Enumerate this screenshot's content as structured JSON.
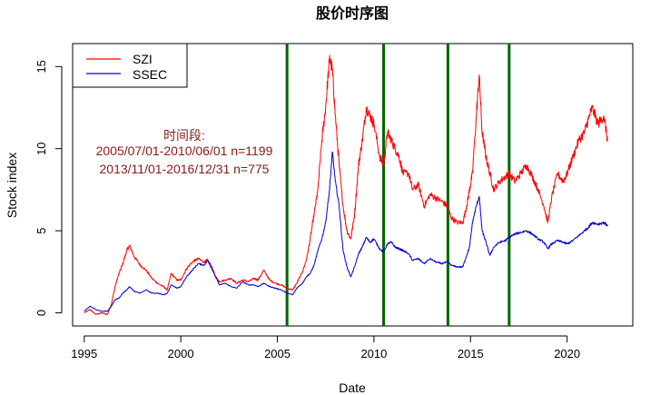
{
  "chart_data": {
    "type": "line",
    "title": "股价时序图",
    "xlabel": "Date",
    "ylabel": "Stock index",
    "xlim": [
      1994.4,
      2023.4
    ],
    "ylim": [
      -0.8,
      16.4
    ],
    "x_ticks": [
      1995,
      2000,
      2005,
      2010,
      2015,
      2020
    ],
    "x_tick_labels": [
      "1995",
      "2000",
      "2005",
      "2010",
      "2015",
      "2020"
    ],
    "y_ticks": [
      0,
      5,
      10,
      15
    ],
    "y_tick_labels": [
      "0",
      "5",
      "10",
      "15"
    ],
    "grid": false,
    "legend": {
      "position": "top-left",
      "entries": [
        "SZI",
        "SSEC"
      ]
    },
    "series": [
      {
        "name": "SZI",
        "color": "#ff0000",
        "x": [
          1995.0,
          1995.3,
          1995.6,
          1995.9,
          1996.2,
          1996.4,
          1996.6,
          1996.8,
          1997.0,
          1997.2,
          1997.35,
          1997.6,
          1997.9,
          1998.2,
          1998.5,
          1998.8,
          1999.1,
          1999.3,
          1999.5,
          1999.8,
          2000.0,
          2000.3,
          2000.6,
          2000.9,
          2001.2,
          2001.4,
          2001.6,
          2001.8,
          2002.0,
          2002.3,
          2002.6,
          2002.9,
          2003.2,
          2003.5,
          2003.8,
          2004.0,
          2004.3,
          2004.6,
          2004.9,
          2005.2,
          2005.5,
          2005.8,
          2006.0,
          2006.3,
          2006.5,
          2006.7,
          2006.9,
          2007.1,
          2007.3,
          2007.5,
          2007.7,
          2007.85,
          2008.0,
          2008.2,
          2008.4,
          2008.6,
          2008.8,
          2009.0,
          2009.2,
          2009.4,
          2009.6,
          2009.8,
          2010.0,
          2010.3,
          2010.5,
          2010.7,
          2010.9,
          2011.1,
          2011.3,
          2011.5,
          2011.8,
          2012.0,
          2012.3,
          2012.6,
          2012.9,
          2013.2,
          2013.5,
          2013.8,
          2014.0,
          2014.3,
          2014.6,
          2014.8,
          2014.95,
          2015.1,
          2015.3,
          2015.45,
          2015.6,
          2015.8,
          2016.0,
          2016.2,
          2016.5,
          2016.8,
          2017.0,
          2017.3,
          2017.6,
          2017.9,
          2018.2,
          2018.5,
          2018.8,
          2019.0,
          2019.2,
          2019.5,
          2019.8,
          2020.0,
          2020.3,
          2020.6,
          2020.9,
          2021.1,
          2021.3,
          2021.6,
          2021.9,
          2022.1
        ],
        "values": [
          0.0,
          0.2,
          -0.1,
          0.0,
          -0.1,
          0.5,
          1.6,
          2.4,
          3.0,
          3.8,
          4.1,
          3.4,
          2.9,
          2.6,
          2.1,
          1.8,
          1.6,
          1.4,
          2.4,
          2.0,
          2.0,
          2.7,
          3.1,
          3.3,
          3.1,
          3.2,
          2.8,
          2.2,
          1.9,
          2.0,
          2.1,
          1.8,
          2.0,
          1.9,
          2.1,
          2.0,
          2.6,
          2.0,
          1.8,
          1.7,
          1.5,
          1.4,
          1.8,
          2.5,
          3.2,
          4.5,
          6.0,
          7.5,
          10.5,
          12.5,
          15.5,
          14.8,
          12.0,
          9.0,
          6.5,
          5.0,
          4.5,
          6.0,
          9.0,
          10.5,
          12.5,
          12.0,
          11.5,
          9.5,
          9.0,
          11.0,
          10.5,
          10.0,
          9.5,
          8.5,
          8.5,
          7.5,
          7.8,
          6.5,
          7.2,
          7.0,
          6.8,
          6.5,
          5.8,
          5.5,
          5.5,
          6.5,
          7.5,
          8.5,
          12.0,
          14.5,
          11.0,
          9.5,
          8.5,
          7.5,
          8.0,
          8.3,
          8.5,
          8.0,
          8.5,
          9.0,
          8.3,
          7.5,
          6.5,
          5.5,
          7.0,
          8.5,
          8.0,
          8.5,
          9.5,
          10.5,
          11.0,
          11.8,
          12.5,
          11.5,
          12.0,
          10.5
        ]
      },
      {
        "name": "SSEC",
        "color": "#0000cc",
        "x": [
          1995.0,
          1995.3,
          1995.6,
          1995.9,
          1996.2,
          1996.4,
          1996.6,
          1996.8,
          1997.0,
          1997.2,
          1997.35,
          1997.6,
          1997.9,
          1998.2,
          1998.5,
          1998.8,
          1999.1,
          1999.3,
          1999.5,
          1999.8,
          2000.0,
          2000.3,
          2000.6,
          2000.9,
          2001.2,
          2001.4,
          2001.6,
          2001.8,
          2002.0,
          2002.3,
          2002.6,
          2002.9,
          2003.2,
          2003.5,
          2003.8,
          2004.0,
          2004.3,
          2004.6,
          2004.9,
          2005.2,
          2005.5,
          2005.8,
          2006.0,
          2006.3,
          2006.5,
          2006.7,
          2006.9,
          2007.1,
          2007.3,
          2007.5,
          2007.7,
          2007.85,
          2008.0,
          2008.2,
          2008.4,
          2008.6,
          2008.8,
          2009.0,
          2009.2,
          2009.4,
          2009.6,
          2009.8,
          2010.0,
          2010.3,
          2010.5,
          2010.7,
          2010.9,
          2011.1,
          2011.3,
          2011.5,
          2011.8,
          2012.0,
          2012.3,
          2012.6,
          2012.9,
          2013.2,
          2013.5,
          2013.8,
          2014.0,
          2014.3,
          2014.6,
          2014.8,
          2014.95,
          2015.1,
          2015.3,
          2015.45,
          2015.6,
          2015.8,
          2016.0,
          2016.2,
          2016.5,
          2016.8,
          2017.0,
          2017.3,
          2017.6,
          2017.9,
          2018.2,
          2018.5,
          2018.8,
          2019.0,
          2019.2,
          2019.5,
          2019.8,
          2020.0,
          2020.3,
          2020.6,
          2020.9,
          2021.1,
          2021.3,
          2021.6,
          2021.9,
          2022.1
        ],
        "values": [
          0.1,
          0.4,
          0.2,
          0.1,
          0.1,
          0.4,
          0.8,
          0.9,
          1.2,
          1.4,
          1.6,
          1.3,
          1.2,
          1.4,
          1.2,
          1.2,
          1.1,
          1.2,
          1.7,
          1.5,
          1.6,
          2.2,
          2.6,
          3.0,
          2.9,
          3.2,
          2.7,
          2.2,
          1.7,
          1.8,
          1.6,
          1.5,
          1.9,
          1.7,
          1.7,
          1.6,
          1.8,
          1.6,
          1.5,
          1.4,
          1.2,
          1.1,
          1.5,
          1.8,
          2.2,
          2.4,
          2.9,
          3.8,
          4.5,
          5.5,
          7.5,
          9.8,
          8.0,
          6.5,
          3.8,
          2.8,
          2.2,
          2.8,
          3.6,
          4.0,
          4.6,
          4.3,
          4.5,
          3.9,
          3.7,
          4.2,
          4.3,
          4.0,
          3.9,
          3.8,
          3.6,
          3.2,
          3.3,
          3.0,
          3.3,
          3.1,
          3.0,
          3.1,
          2.9,
          2.8,
          2.8,
          3.5,
          4.0,
          5.5,
          6.5,
          7.1,
          5.0,
          4.3,
          3.5,
          4.0,
          4.3,
          4.4,
          4.6,
          4.8,
          4.9,
          5.0,
          4.8,
          4.5,
          4.3,
          3.9,
          4.2,
          4.4,
          4.3,
          4.2,
          4.4,
          4.7,
          5.0,
          5.2,
          5.5,
          5.4,
          5.5,
          5.3
        ]
      }
    ],
    "vertical_lines": [
      2005.5,
      2010.5,
      2013.83,
      2017.0
    ],
    "vertical_line_color": "#006400",
    "annotations": [
      "时间段:",
      "2005/07/01-2010/06/01 n=1199",
      "2013/11/01-2016/12/31 n=775"
    ],
    "annotation_color": "#8b1a1a"
  }
}
